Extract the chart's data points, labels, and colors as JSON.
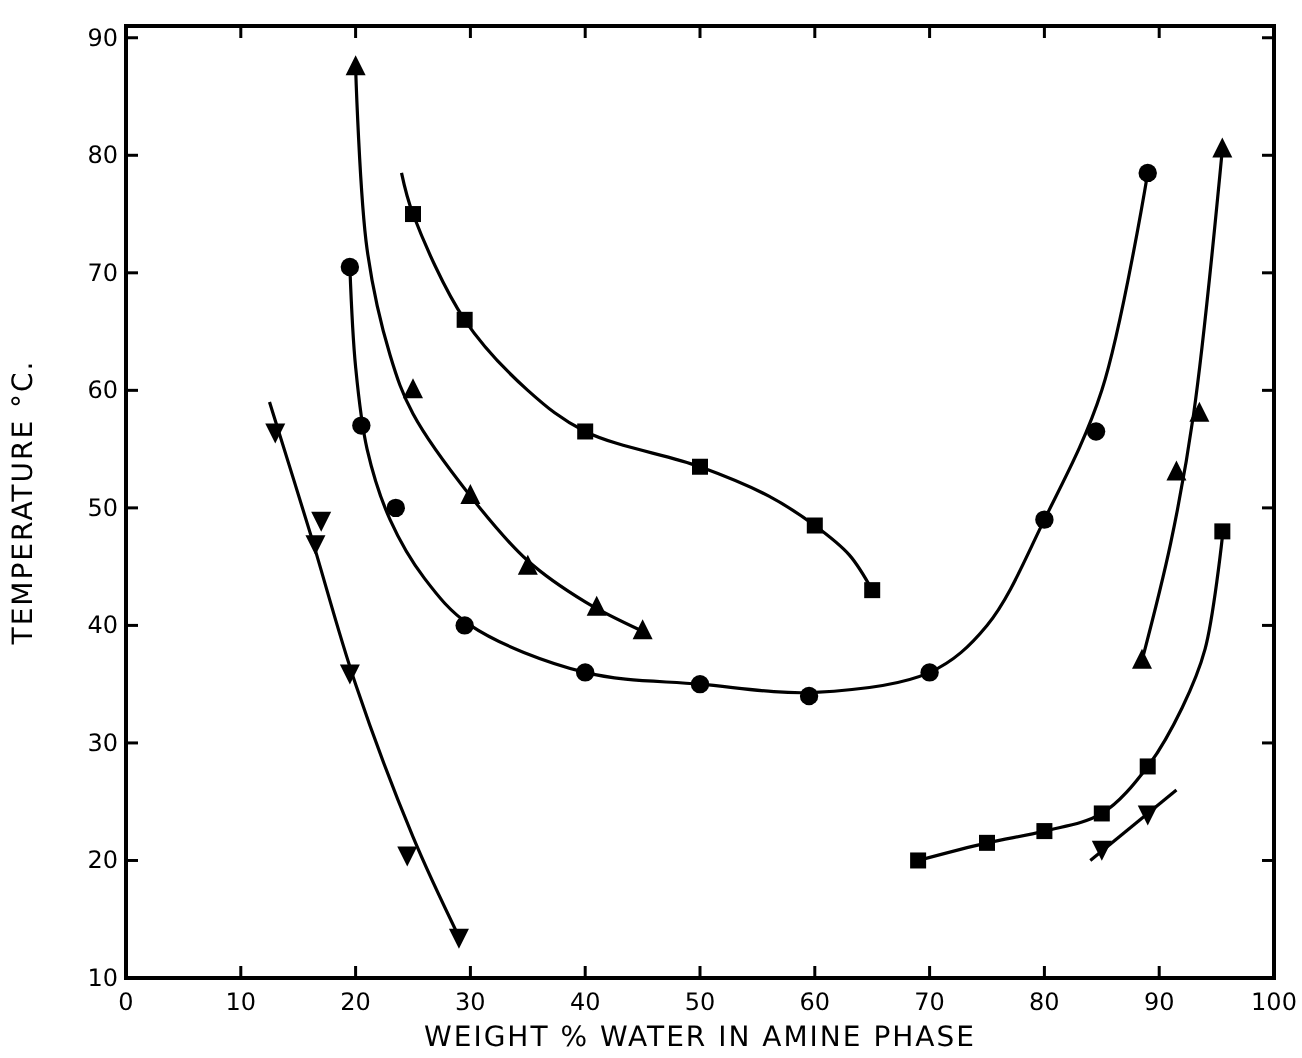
{
  "chart_data": {
    "type": "scatter",
    "xlabel": "WEIGHT % WATER IN AMINE PHASE",
    "ylabel": "TEMPERATURE °C.",
    "xlim": [
      0,
      100
    ],
    "ylim": [
      10,
      91
    ],
    "xticks": [
      0,
      10,
      20,
      30,
      40,
      50,
      60,
      70,
      80,
      90,
      100
    ],
    "yticks": [
      10,
      20,
      30,
      40,
      50,
      60,
      70,
      80,
      90
    ],
    "grid": false,
    "series": [
      {
        "marker": "triangle-down",
        "color": "#000000",
        "x": [
          13,
          17,
          16.5,
          19.5,
          24.5,
          29,
          85,
          89
        ],
        "values": [
          56.5,
          49,
          47,
          36,
          20.5,
          13.5,
          21,
          24
        ]
      },
      {
        "marker": "circle",
        "color": "#000000",
        "x": [
          19.5,
          20.5,
          23.5,
          29.5,
          40,
          50,
          59.5,
          70,
          80,
          84.5,
          89
        ],
        "values": [
          70.5,
          57,
          50,
          40,
          36,
          35,
          34,
          36,
          49,
          56.5,
          78.5
        ]
      },
      {
        "marker": "triangle",
        "color": "#000000",
        "x": [
          20,
          25,
          30,
          35,
          41,
          45,
          88.5,
          91.5,
          93.5,
          95.5
        ],
        "values": [
          87.5,
          60,
          51,
          45,
          41.5,
          39.5,
          37,
          53,
          58,
          80.5
        ]
      },
      {
        "marker": "square",
        "color": "#000000",
        "x": [
          25,
          29.5,
          40,
          50,
          60,
          65,
          69,
          75,
          80,
          85,
          89,
          95.5
        ],
        "values": [
          75,
          66,
          56.5,
          53.5,
          48.5,
          43,
          20,
          21.5,
          22.5,
          24,
          28,
          48
        ]
      },
      {
        "type": "line",
        "marker": "none",
        "color": "#000000",
        "x": [
          12.5,
          16,
          20,
          25,
          29
        ],
        "values": [
          59,
          48,
          35,
          22,
          13.5
        ]
      },
      {
        "type": "line",
        "marker": "none",
        "color": "#000000",
        "x": [
          84,
          91.5
        ],
        "values": [
          20,
          26
        ]
      },
      {
        "type": "line",
        "marker": "none",
        "color": "#000000",
        "x": [
          19.5,
          20,
          21,
          23,
          26,
          30,
          40,
          50,
          60,
          70,
          75,
          80,
          85,
          89
        ],
        "values": [
          70.5,
          62,
          55,
          49,
          44,
          40,
          36,
          35,
          34.3,
          36,
          40,
          49,
          60,
          78.5
        ]
      },
      {
        "type": "line",
        "marker": "none",
        "color": "#000000",
        "x": [
          20,
          21,
          23,
          25,
          30,
          35,
          40,
          45
        ],
        "values": [
          87.5,
          72,
          63,
          58,
          51,
          45.5,
          42,
          39.5
        ]
      },
      {
        "type": "line",
        "marker": "none",
        "color": "#000000",
        "x": [
          88.5,
          91,
          93,
          95.5
        ],
        "values": [
          37,
          47,
          58,
          80.5
        ]
      },
      {
        "type": "line",
        "marker": "none",
        "color": "#000000",
        "x": [
          24,
          25,
          29.5,
          35,
          40,
          50,
          56,
          60,
          63,
          65
        ],
        "values": [
          78.5,
          75,
          66,
          60,
          56.5,
          53.5,
          51,
          48.5,
          46,
          43
        ]
      },
      {
        "type": "line",
        "marker": "none",
        "color": "#000000",
        "x": [
          69,
          75,
          80,
          85,
          89,
          92,
          94,
          95.5
        ],
        "values": [
          20,
          21.5,
          22.5,
          24,
          28,
          33,
          38,
          47.5
        ]
      }
    ]
  }
}
